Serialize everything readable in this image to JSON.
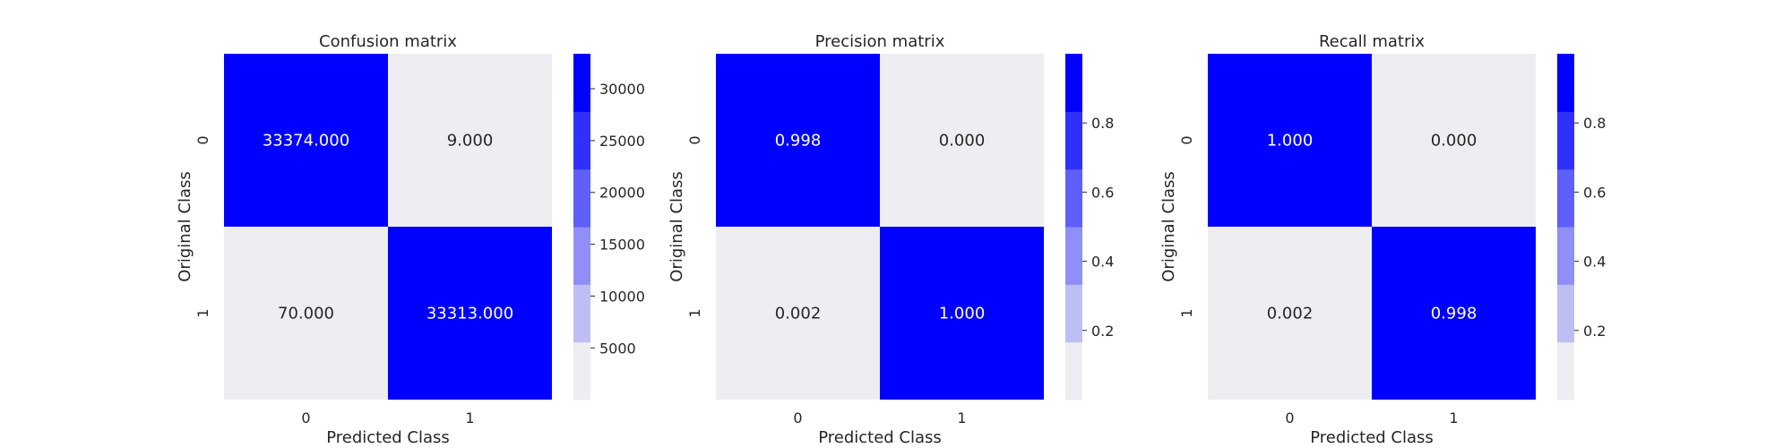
{
  "colors": {
    "high": "#0000ff",
    "low": "#eeeef2",
    "text_dark": "#262626",
    "text_light": "#ffffff"
  },
  "chart_data": [
    {
      "type": "heatmap",
      "title": "Confusion matrix",
      "xlabel": "Predicted Class",
      "ylabel": "Original Class",
      "x_ticks": [
        "0",
        "1"
      ],
      "y_ticks": [
        "0",
        "1"
      ],
      "values": [
        [
          33374,
          9
        ],
        [
          70,
          33313
        ]
      ],
      "cell_labels": [
        [
          "33374.000",
          "9.000"
        ],
        [
          "70.000",
          "33313.000"
        ]
      ],
      "vrange": [
        9,
        33374
      ],
      "colorbar": {
        "ticks": [
          5000,
          10000,
          15000,
          20000,
          25000,
          30000
        ],
        "tick_labels": [
          "5000",
          "10000",
          "15000",
          "20000",
          "25000",
          "30000"
        ],
        "levels": 6
      }
    },
    {
      "type": "heatmap",
      "title": "Precision matrix",
      "xlabel": "Predicted Class",
      "ylabel": "Original Class",
      "x_ticks": [
        "0",
        "1"
      ],
      "y_ticks": [
        "0",
        "1"
      ],
      "values": [
        [
          0.998,
          0.0
        ],
        [
          0.002,
          1.0
        ]
      ],
      "cell_labels": [
        [
          "0.998",
          "0.000"
        ],
        [
          "0.002",
          "1.000"
        ]
      ],
      "vrange": [
        0.0,
        1.0
      ],
      "colorbar": {
        "ticks": [
          0.2,
          0.4,
          0.6,
          0.8
        ],
        "tick_labels": [
          "0.2",
          "0.4",
          "0.6",
          "0.8"
        ],
        "levels": 6
      }
    },
    {
      "type": "heatmap",
      "title": "Recall matrix",
      "xlabel": "Predicted Class",
      "ylabel": "Original Class",
      "x_ticks": [
        "0",
        "1"
      ],
      "y_ticks": [
        "0",
        "1"
      ],
      "values": [
        [
          1.0,
          0.0
        ],
        [
          0.002,
          0.998
        ]
      ],
      "cell_labels": [
        [
          "1.000",
          "0.000"
        ],
        [
          "0.002",
          "0.998"
        ]
      ],
      "vrange": [
        0.0,
        1.0
      ],
      "colorbar": {
        "ticks": [
          0.2,
          0.4,
          0.6,
          0.8
        ],
        "tick_labels": [
          "0.2",
          "0.4",
          "0.6",
          "0.8"
        ],
        "levels": 6
      }
    }
  ]
}
